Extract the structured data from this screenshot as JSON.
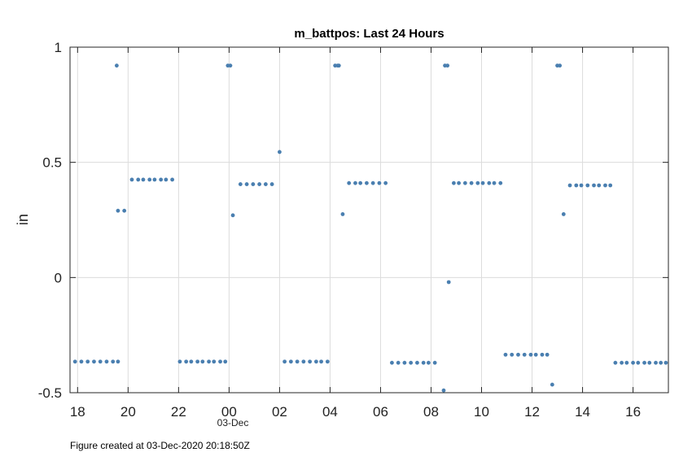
{
  "chart_data": {
    "type": "scatter",
    "title": "m_battpos: Last 24 Hours",
    "ylabel": "in",
    "xlabel": "",
    "xlim": [
      17.7,
      41.4
    ],
    "ylim": [
      -0.5,
      1
    ],
    "x_ticks": [
      {
        "value": 18,
        "label": "18"
      },
      {
        "value": 20,
        "label": "20"
      },
      {
        "value": 22,
        "label": "22"
      },
      {
        "value": 24,
        "label": "00"
      },
      {
        "value": 26,
        "label": "02"
      },
      {
        "value": 28,
        "label": "04"
      },
      {
        "value": 30,
        "label": "06"
      },
      {
        "value": 32,
        "label": "08"
      },
      {
        "value": 34,
        "label": "10"
      },
      {
        "value": 36,
        "label": "12"
      },
      {
        "value": 38,
        "label": "14"
      },
      {
        "value": 40,
        "label": "16"
      }
    ],
    "x_date_label": {
      "value": 24,
      "label": "03-Dec"
    },
    "y_ticks": [
      {
        "value": 1,
        "label": "1"
      },
      {
        "value": 0.5,
        "label": "0.5"
      },
      {
        "value": 0,
        "label": "0"
      },
      {
        "value": -0.5,
        "label": "-0.5"
      }
    ],
    "grid": true,
    "marker_color": "#4a7fb0",
    "series": [
      {
        "points": [
          [
            17.9,
            -0.365
          ],
          [
            18.15,
            -0.365
          ],
          [
            18.4,
            -0.365
          ],
          [
            18.65,
            -0.365
          ],
          [
            18.9,
            -0.365
          ],
          [
            19.15,
            -0.365
          ],
          [
            19.4,
            -0.365
          ],
          [
            19.6,
            -0.365
          ],
          [
            19.55,
            0.92
          ],
          [
            19.6,
            0.29
          ],
          [
            19.85,
            0.29
          ],
          [
            20.15,
            0.425
          ],
          [
            20.4,
            0.425
          ],
          [
            20.6,
            0.425
          ],
          [
            20.85,
            0.425
          ],
          [
            21.05,
            0.425
          ],
          [
            21.3,
            0.425
          ],
          [
            21.5,
            0.425
          ],
          [
            21.75,
            0.425
          ],
          [
            22.05,
            -0.365
          ],
          [
            22.3,
            -0.365
          ],
          [
            22.5,
            -0.365
          ],
          [
            22.75,
            -0.365
          ],
          [
            22.95,
            -0.365
          ],
          [
            23.2,
            -0.365
          ],
          [
            23.4,
            -0.365
          ],
          [
            23.65,
            -0.365
          ],
          [
            23.85,
            -0.365
          ],
          [
            23.95,
            0.92
          ],
          [
            24.05,
            0.92
          ],
          [
            24.15,
            0.27
          ],
          [
            24.45,
            0.405
          ],
          [
            24.7,
            0.405
          ],
          [
            24.95,
            0.405
          ],
          [
            25.2,
            0.405
          ],
          [
            25.45,
            0.405
          ],
          [
            25.7,
            0.405
          ],
          [
            26.0,
            0.545
          ],
          [
            26.2,
            -0.365
          ],
          [
            26.45,
            -0.365
          ],
          [
            26.7,
            -0.365
          ],
          [
            26.95,
            -0.365
          ],
          [
            27.2,
            -0.365
          ],
          [
            27.45,
            -0.365
          ],
          [
            27.65,
            -0.365
          ],
          [
            27.9,
            -0.365
          ],
          [
            28.2,
            0.92
          ],
          [
            28.3,
            0.92
          ],
          [
            28.35,
            0.92
          ],
          [
            28.5,
            0.275
          ],
          [
            28.75,
            0.41
          ],
          [
            29.0,
            0.41
          ],
          [
            29.2,
            0.41
          ],
          [
            29.45,
            0.41
          ],
          [
            29.7,
            0.41
          ],
          [
            29.95,
            0.41
          ],
          [
            30.2,
            0.41
          ],
          [
            30.45,
            -0.37
          ],
          [
            30.7,
            -0.37
          ],
          [
            30.95,
            -0.37
          ],
          [
            31.2,
            -0.37
          ],
          [
            31.45,
            -0.37
          ],
          [
            31.7,
            -0.37
          ],
          [
            31.9,
            -0.37
          ],
          [
            32.15,
            -0.37
          ],
          [
            32.5,
            -0.49
          ],
          [
            32.55,
            0.92
          ],
          [
            32.65,
            0.92
          ],
          [
            32.7,
            -0.02
          ],
          [
            32.9,
            0.41
          ],
          [
            33.1,
            0.41
          ],
          [
            33.35,
            0.41
          ],
          [
            33.6,
            0.41
          ],
          [
            33.85,
            0.41
          ],
          [
            34.05,
            0.41
          ],
          [
            34.3,
            0.41
          ],
          [
            34.5,
            0.41
          ],
          [
            34.75,
            0.41
          ],
          [
            34.95,
            -0.335
          ],
          [
            35.2,
            -0.335
          ],
          [
            35.45,
            -0.335
          ],
          [
            35.7,
            -0.335
          ],
          [
            35.95,
            -0.335
          ],
          [
            36.15,
            -0.335
          ],
          [
            36.4,
            -0.335
          ],
          [
            36.6,
            -0.335
          ],
          [
            36.8,
            -0.465
          ],
          [
            37.0,
            0.92
          ],
          [
            37.1,
            0.92
          ],
          [
            37.25,
            0.275
          ],
          [
            37.5,
            0.4
          ],
          [
            37.75,
            0.4
          ],
          [
            37.95,
            0.4
          ],
          [
            38.2,
            0.4
          ],
          [
            38.45,
            0.4
          ],
          [
            38.65,
            0.4
          ],
          [
            38.9,
            0.4
          ],
          [
            39.1,
            0.4
          ],
          [
            39.3,
            -0.37
          ],
          [
            39.55,
            -0.37
          ],
          [
            39.75,
            -0.37
          ],
          [
            40.0,
            -0.37
          ],
          [
            40.2,
            -0.37
          ],
          [
            40.45,
            -0.37
          ],
          [
            40.65,
            -0.37
          ],
          [
            40.9,
            -0.37
          ],
          [
            41.1,
            -0.37
          ],
          [
            41.3,
            -0.37
          ]
        ]
      }
    ]
  },
  "footer": {
    "text": "Figure created at 03-Dec-2020 20:18:50Z"
  }
}
